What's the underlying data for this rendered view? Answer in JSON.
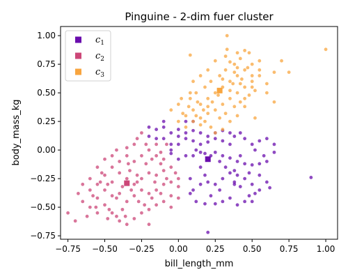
{
  "chart_data": {
    "type": "scatter",
    "title": "Pinguine - 2-dim fuer cluster",
    "xlabel": "bill_length_mm",
    "ylabel": "body_mass_kg",
    "xlim": [
      -0.8,
      1.08
    ],
    "ylim": [
      -0.78,
      1.08
    ],
    "xticks": [
      -0.75,
      -0.5,
      -0.25,
      0.0,
      0.25,
      0.5,
      0.75,
      1.0
    ],
    "xtick_labels": [
      "−0.75",
      "−0.50",
      "−0.25",
      "0.00",
      "0.25",
      "0.50",
      "0.75",
      "1.00"
    ],
    "yticks": [
      -0.75,
      -0.5,
      -0.25,
      0.0,
      0.25,
      0.5,
      0.75,
      1.0
    ],
    "ytick_labels": [
      "−0.75",
      "−0.50",
      "−0.25",
      "0.00",
      "0.25",
      "0.50",
      "0.75",
      "1.00"
    ],
    "grid": false,
    "legend_position": "top-left",
    "series": [
      {
        "name": "c₁",
        "name_main": "c",
        "name_sub": "1",
        "color": "#6a0dad",
        "centroid": [
          0.2,
          -0.08
        ],
        "points": [
          [
            0.05,
            0.15
          ],
          [
            0.1,
            0.17
          ],
          [
            0.15,
            0.15
          ],
          [
            0.2,
            0.12
          ],
          [
            0.25,
            0.15
          ],
          [
            0.3,
            0.17
          ],
          [
            0.35,
            0.15
          ],
          [
            0.05,
            0.1
          ],
          [
            0.1,
            0.08
          ],
          [
            0.15,
            0.05
          ],
          [
            0.2,
            0.07
          ],
          [
            0.25,
            0.1
          ],
          [
            0.12,
            0.0
          ],
          [
            0.15,
            -0.02
          ],
          [
            0.18,
            -0.03
          ],
          [
            0.22,
            -0.05
          ],
          [
            0.25,
            -0.02
          ],
          [
            0.3,
            -0.05
          ],
          [
            0.35,
            -0.07
          ],
          [
            0.4,
            -0.1
          ],
          [
            0.45,
            -0.12
          ],
          [
            0.5,
            -0.13
          ],
          [
            0.55,
            -0.12
          ],
          [
            0.15,
            -0.15
          ],
          [
            0.18,
            -0.22
          ],
          [
            0.2,
            -0.28
          ],
          [
            0.25,
            -0.3
          ],
          [
            0.3,
            -0.25
          ],
          [
            0.35,
            -0.2
          ],
          [
            0.38,
            -0.18
          ],
          [
            0.4,
            -0.22
          ],
          [
            0.45,
            -0.25
          ],
          [
            0.5,
            -0.3
          ],
          [
            0.52,
            -0.38
          ],
          [
            0.48,
            -0.4
          ],
          [
            0.45,
            -0.45
          ],
          [
            0.4,
            -0.48
          ],
          [
            0.35,
            -0.42
          ],
          [
            0.3,
            -0.45
          ],
          [
            0.25,
            -0.47
          ],
          [
            0.18,
            -0.47
          ],
          [
            0.12,
            -0.45
          ],
          [
            0.15,
            -0.3
          ],
          [
            0.1,
            -0.35
          ],
          [
            0.08,
            -0.25
          ],
          [
            -0.05,
            0.0
          ],
          [
            -0.05,
            0.05
          ],
          [
            0.0,
            0.05
          ],
          [
            0.0,
            0.12
          ],
          [
            -0.1,
            0.1
          ],
          [
            -0.15,
            0.1
          ],
          [
            -0.2,
            0.12
          ],
          [
            -0.15,
            0.18
          ],
          [
            -0.1,
            0.2
          ],
          [
            -0.05,
            0.15
          ],
          [
            0.0,
            0.18
          ],
          [
            -0.2,
            0.2
          ],
          [
            -0.1,
            0.25
          ],
          [
            0.05,
            0.25
          ],
          [
            0.1,
            0.25
          ],
          [
            0.55,
            0.08
          ],
          [
            0.6,
            0.1
          ],
          [
            0.65,
            0.05
          ],
          [
            0.58,
            -0.05
          ],
          [
            0.6,
            -0.1
          ],
          [
            0.52,
            0.0
          ],
          [
            0.5,
            0.05
          ],
          [
            0.45,
            0.1
          ],
          [
            0.42,
            0.15
          ],
          [
            0.38,
            0.12
          ],
          [
            0.35,
            0.05
          ],
          [
            0.3,
            0.08
          ],
          [
            0.28,
            -0.1
          ],
          [
            0.32,
            -0.15
          ],
          [
            0.38,
            -0.28
          ],
          [
            0.42,
            -0.32
          ],
          [
            0.48,
            -0.2
          ],
          [
            0.55,
            -0.22
          ],
          [
            0.6,
            -0.28
          ],
          [
            0.55,
            -0.35
          ],
          [
            0.5,
            -0.45
          ],
          [
            0.28,
            -0.35
          ],
          [
            0.22,
            -0.4
          ],
          [
            0.9,
            -0.24
          ],
          [
            0.2,
            -0.72
          ],
          [
            0.08,
            -0.38
          ],
          [
            0.62,
            -0.33
          ],
          [
            0.65,
            -0.02
          ],
          [
            0.05,
            -0.05
          ],
          [
            0.0,
            -0.08
          ],
          [
            -0.05,
            -0.03
          ],
          [
            0.1,
            -0.05
          ],
          [
            0.42,
            -0.05
          ],
          [
            0.38,
            -0.3
          ]
        ]
      },
      {
        "name": "c₂",
        "name_main": "c",
        "name_sub": "2",
        "color": "#cc4778",
        "centroid": [
          -0.35,
          -0.29
        ],
        "points": [
          [
            -0.75,
            -0.55
          ],
          [
            -0.7,
            -0.62
          ],
          [
            -0.65,
            -0.45
          ],
          [
            -0.6,
            -0.35
          ],
          [
            -0.55,
            -0.42
          ],
          [
            -0.5,
            -0.48
          ],
          [
            -0.45,
            -0.55
          ],
          [
            -0.4,
            -0.62
          ],
          [
            -0.35,
            -0.65
          ],
          [
            -0.3,
            -0.6
          ],
          [
            -0.25,
            -0.55
          ],
          [
            -0.2,
            -0.52
          ],
          [
            -0.15,
            -0.48
          ],
          [
            -0.1,
            -0.45
          ],
          [
            -0.05,
            -0.4
          ],
          [
            -0.6,
            -0.25
          ],
          [
            -0.55,
            -0.3
          ],
          [
            -0.5,
            -0.22
          ],
          [
            -0.45,
            -0.28
          ],
          [
            -0.4,
            -0.2
          ],
          [
            -0.35,
            -0.25
          ],
          [
            -0.3,
            -0.3
          ],
          [
            -0.25,
            -0.25
          ],
          [
            -0.2,
            -0.2
          ],
          [
            -0.15,
            -0.22
          ],
          [
            -0.1,
            -0.18
          ],
          [
            -0.05,
            -0.15
          ],
          [
            -0.5,
            -0.35
          ],
          [
            -0.45,
            -0.4
          ],
          [
            -0.4,
            -0.38
          ],
          [
            -0.35,
            -0.45
          ],
          [
            -0.3,
            -0.4
          ],
          [
            -0.25,
            -0.35
          ],
          [
            -0.2,
            -0.38
          ],
          [
            -0.15,
            -0.35
          ],
          [
            -0.1,
            -0.3
          ],
          [
            -0.05,
            -0.28
          ],
          [
            0.0,
            -0.25
          ],
          [
            -0.4,
            -0.1
          ],
          [
            -0.35,
            -0.05
          ],
          [
            -0.3,
            -0.1
          ],
          [
            -0.25,
            -0.05
          ],
          [
            -0.2,
            0.0
          ],
          [
            -0.15,
            -0.05
          ],
          [
            -0.1,
            -0.08
          ],
          [
            -0.45,
            -0.05
          ],
          [
            -0.55,
            -0.15
          ],
          [
            -0.6,
            -0.5
          ],
          [
            -0.65,
            -0.3
          ],
          [
            -0.55,
            -0.55
          ],
          [
            -0.48,
            -0.6
          ],
          [
            -0.42,
            -0.58
          ],
          [
            -0.38,
            -0.52
          ],
          [
            -0.32,
            -0.35
          ],
          [
            -0.28,
            -0.22
          ],
          [
            -0.22,
            -0.12
          ],
          [
            -0.18,
            -0.08
          ],
          [
            -0.12,
            -0.02
          ],
          [
            -0.08,
            0.05
          ],
          [
            -0.3,
            0.05
          ],
          [
            -0.28,
            0.1
          ],
          [
            -0.22,
            0.05
          ],
          [
            -0.35,
            0.02
          ],
          [
            -0.42,
            0.0
          ],
          [
            -0.5,
            -0.08
          ],
          [
            -0.52,
            -0.2
          ],
          [
            -0.58,
            -0.4
          ],
          [
            -0.62,
            -0.58
          ],
          [
            -0.68,
            -0.38
          ],
          [
            -0.45,
            -0.15
          ],
          [
            -0.38,
            -0.32
          ],
          [
            -0.33,
            -0.18
          ],
          [
            -0.27,
            -0.45
          ],
          [
            -0.23,
            -0.48
          ],
          [
            -0.18,
            -0.42
          ],
          [
            -0.12,
            -0.38
          ],
          [
            -0.08,
            -0.25
          ],
          [
            -0.02,
            -0.2
          ],
          [
            -0.05,
            -0.5
          ],
          [
            0.0,
            -0.42
          ],
          [
            -0.2,
            -0.65
          ],
          [
            0.0,
            -0.32
          ],
          [
            -0.25,
            0.15
          ],
          [
            -0.15,
            0.05
          ],
          [
            -0.48,
            -0.3
          ],
          [
            -0.42,
            -0.42
          ],
          [
            -0.36,
            -0.58
          ],
          [
            -0.34,
            -0.12
          ],
          [
            -0.28,
            -0.28
          ],
          [
            -0.16,
            -0.28
          ],
          [
            -0.12,
            -0.12
          ],
          [
            -0.56,
            -0.5
          ],
          [
            -0.53,
            -0.28
          ],
          [
            -0.47,
            -0.52
          ]
        ]
      },
      {
        "name": "c₃",
        "name_main": "c",
        "name_sub": "3",
        "color": "#f8a53f",
        "centroid": [
          0.28,
          0.52
        ],
        "points": [
          [
            0.05,
            0.3
          ],
          [
            0.1,
            0.35
          ],
          [
            0.15,
            0.4
          ],
          [
            0.2,
            0.45
          ],
          [
            0.25,
            0.5
          ],
          [
            0.3,
            0.55
          ],
          [
            0.35,
            0.6
          ],
          [
            0.4,
            0.65
          ],
          [
            0.45,
            0.7
          ],
          [
            0.5,
            0.75
          ],
          [
            0.08,
            0.45
          ],
          [
            0.12,
            0.5
          ],
          [
            0.18,
            0.55
          ],
          [
            0.22,
            0.6
          ],
          [
            0.28,
            0.65
          ],
          [
            0.32,
            0.7
          ],
          [
            0.38,
            0.75
          ],
          [
            0.42,
            0.8
          ],
          [
            0.48,
            0.85
          ],
          [
            0.1,
            0.25
          ],
          [
            0.15,
            0.28
          ],
          [
            0.2,
            0.32
          ],
          [
            0.25,
            0.35
          ],
          [
            0.3,
            0.4
          ],
          [
            0.35,
            0.45
          ],
          [
            0.4,
            0.5
          ],
          [
            0.45,
            0.55
          ],
          [
            0.5,
            0.6
          ],
          [
            0.55,
            0.65
          ],
          [
            0.0,
            0.4
          ],
          [
            0.05,
            0.2
          ],
          [
            0.12,
            0.3
          ],
          [
            0.18,
            0.25
          ],
          [
            0.22,
            0.2
          ],
          [
            0.28,
            0.28
          ],
          [
            0.32,
            0.32
          ],
          [
            0.38,
            0.38
          ],
          [
            0.42,
            0.42
          ],
          [
            0.48,
            0.48
          ],
          [
            0.52,
            0.52
          ],
          [
            0.6,
            0.58
          ],
          [
            0.65,
            0.68
          ],
          [
            0.7,
            0.78
          ],
          [
            0.75,
            0.68
          ],
          [
            1.0,
            0.88
          ],
          [
            0.08,
            0.83
          ],
          [
            0.33,
            1.0
          ],
          [
            0.33,
            0.88
          ],
          [
            0.4,
            0.85
          ],
          [
            0.45,
            0.87
          ],
          [
            0.35,
            0.77
          ],
          [
            0.25,
            0.78
          ],
          [
            0.2,
            0.7
          ],
          [
            0.15,
            0.65
          ],
          [
            0.1,
            0.6
          ],
          [
            -0.05,
            0.35
          ],
          [
            0.02,
            0.45
          ],
          [
            0.0,
            0.25
          ],
          [
            0.07,
            0.38
          ],
          [
            0.25,
            0.15
          ],
          [
            0.3,
            0.18
          ],
          [
            0.35,
            0.25
          ],
          [
            0.4,
            0.3
          ],
          [
            0.45,
            0.38
          ],
          [
            0.5,
            0.65
          ],
          [
            0.55,
            0.7
          ],
          [
            0.6,
            0.5
          ],
          [
            0.65,
            0.42
          ],
          [
            0.52,
            0.28
          ],
          [
            0.47,
            0.72
          ],
          [
            0.43,
            0.62
          ],
          [
            0.37,
            0.58
          ],
          [
            0.27,
            0.48
          ],
          [
            0.23,
            0.42
          ],
          [
            0.17,
            0.35
          ],
          [
            0.13,
            0.42
          ],
          [
            0.08,
            0.5
          ],
          [
            0.03,
            0.32
          ],
          [
            0.15,
            0.22
          ],
          [
            0.2,
            0.38
          ],
          [
            0.3,
            0.62
          ],
          [
            0.35,
            0.52
          ],
          [
            0.4,
            0.72
          ],
          [
            0.45,
            0.45
          ],
          [
            0.5,
            0.55
          ],
          [
            0.55,
            0.78
          ],
          [
            0.42,
            0.58
          ],
          [
            0.38,
            0.68
          ],
          [
            0.32,
            0.82
          ]
        ]
      }
    ]
  }
}
